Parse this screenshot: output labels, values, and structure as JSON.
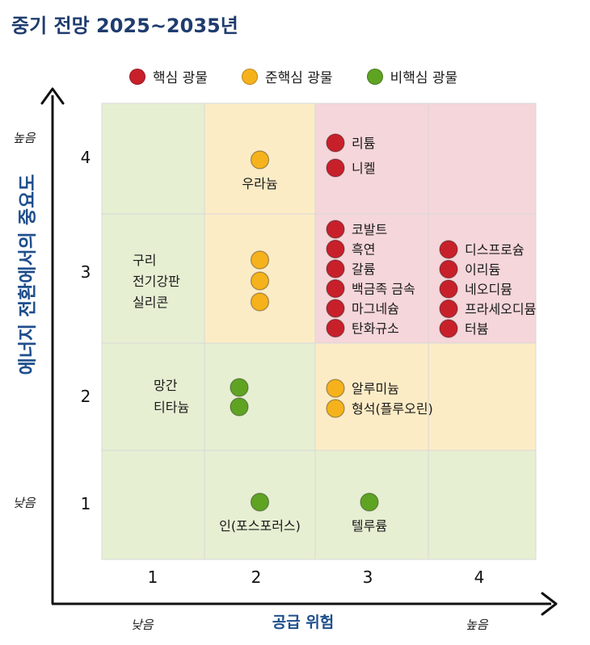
{
  "title": "중기 전망 2025~2035년",
  "legend": [
    {
      "label": "핵심 광물",
      "color": "#c8202b"
    },
    {
      "label": "준핵심 광물",
      "color": "#f6b21c"
    },
    {
      "label": "비핵심 광물",
      "color": "#5fa323"
    }
  ],
  "axes": {
    "ylabel": "에너지 전환에서의 중요도",
    "xlabel": "공급 위험",
    "y_high": "높음",
    "y_low": "낮음",
    "x_low": "낮음",
    "x_high": "높음"
  },
  "chart_data": {
    "type": "scatter",
    "title": "중기 전망 2025~2035년",
    "xlabel": "공급 위험",
    "ylabel": "에너지 전환에서의 중요도",
    "x_ticks": [
      "1",
      "2",
      "3",
      "4"
    ],
    "y_ticks": [
      "1",
      "2",
      "3",
      "4"
    ],
    "xlim": [
      1,
      4
    ],
    "ylim": [
      1,
      4
    ],
    "cell_colors": {
      "core": "#f5d6da",
      "semi": "#fcecc6",
      "noncore": "#e6efd2"
    },
    "cells": [
      {
        "x": 1,
        "y": 4,
        "zone": "noncore"
      },
      {
        "x": 2,
        "y": 4,
        "zone": "semi"
      },
      {
        "x": 3,
        "y": 4,
        "zone": "core"
      },
      {
        "x": 4,
        "y": 4,
        "zone": "core"
      },
      {
        "x": 1,
        "y": 3,
        "zone": "noncore"
      },
      {
        "x": 2,
        "y": 3,
        "zone": "semi"
      },
      {
        "x": 3,
        "y": 3,
        "zone": "core"
      },
      {
        "x": 4,
        "y": 3,
        "zone": "core"
      },
      {
        "x": 1,
        "y": 2,
        "zone": "noncore"
      },
      {
        "x": 2,
        "y": 2,
        "zone": "noncore"
      },
      {
        "x": 3,
        "y": 2,
        "zone": "semi"
      },
      {
        "x": 4,
        "y": 2,
        "zone": "semi"
      },
      {
        "x": 1,
        "y": 1,
        "zone": "noncore"
      },
      {
        "x": 2,
        "y": 1,
        "zone": "noncore"
      },
      {
        "x": 3,
        "y": 1,
        "zone": "noncore"
      },
      {
        "x": 4,
        "y": 1,
        "zone": "noncore"
      }
    ],
    "points": [
      {
        "x": 2,
        "y": 4,
        "category": "준핵심 광물",
        "labels": [
          "우라늄"
        ]
      },
      {
        "x": 3,
        "y": 4,
        "category": "핵심 광물",
        "labels": [
          "리튬",
          "니켈"
        ]
      },
      {
        "x": 1,
        "y": 3,
        "category": "준핵심 광물",
        "labels": [
          "구리",
          "전기강판",
          "실리콘"
        ]
      },
      {
        "x": 3,
        "y": 3,
        "category": "핵심 광물",
        "labels": [
          "코발트",
          "흑연",
          "갈륨",
          "백금족 금속",
          "마그네슘",
          "탄화규소"
        ]
      },
      {
        "x": 4,
        "y": 3,
        "category": "핵심 광물",
        "labels": [
          "디스프로슘",
          "이리듐",
          "네오디뮴",
          "프라세오디뮴",
          "터븀"
        ]
      },
      {
        "x": 1,
        "y": 2,
        "category": "비핵심 광물",
        "labels": [
          "망간",
          "티타늄"
        ]
      },
      {
        "x": 3,
        "y": 2,
        "category": "준핵심 광물",
        "labels": [
          "알루미늄",
          "형석(플루오린)"
        ]
      },
      {
        "x": 2,
        "y": 1,
        "category": "비핵심 광물",
        "labels": [
          "인(포스포러스)"
        ]
      },
      {
        "x": 3,
        "y": 1,
        "category": "비핵심 광물",
        "labels": [
          "텔루륨"
        ]
      }
    ]
  }
}
